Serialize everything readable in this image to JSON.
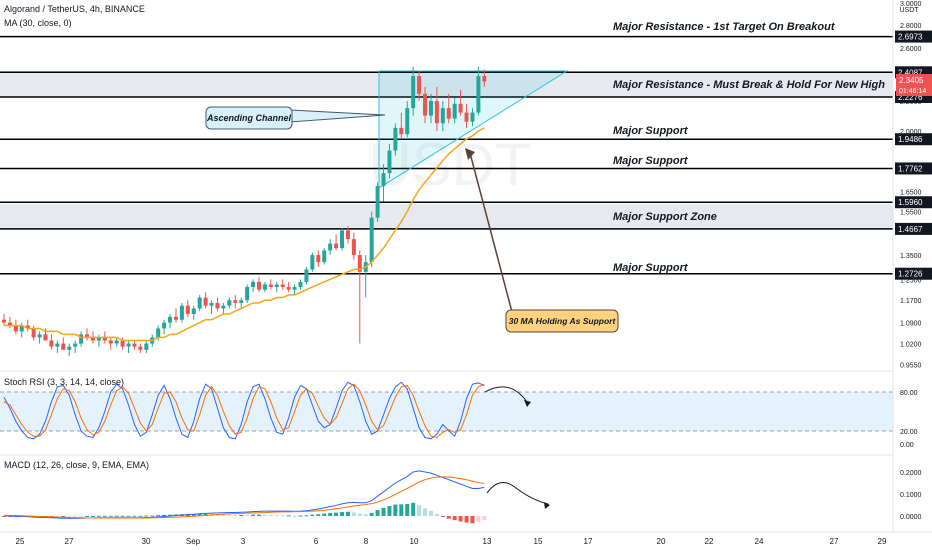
{
  "header": {
    "symbol_line": "Algorand / TetherUS, 4h, BINANCE",
    "ma_line": "MA (30, close, 0)",
    "stoch_line": "Stoch RSI (3, 3, 14, 14, close)",
    "macd_line": "MACD (12, 26, close, 9, EMA, EMA)"
  },
  "chart_data": [
    {
      "type": "candlestick",
      "title": "Algorand / TetherUS, 4h, BINANCE",
      "currency": "USDT",
      "yscale": "log",
      "ylim": [
        0.95,
        3.0
      ],
      "price_ticks": [
        "3.0000",
        "2.8000",
        "2.6000",
        "2.4000",
        "2.2000",
        "2.0000",
        "1.8000",
        "1.6500",
        "1.5500",
        "1.3500",
        "1.2500",
        "1.1700",
        "1.0900",
        "1.0200",
        "0.9550"
      ],
      "x_ticks": [
        "25",
        "27",
        "30",
        "Sep",
        "3",
        "6",
        "8",
        "10",
        "13",
        "15",
        "17",
        "20",
        "22",
        "24",
        "27",
        "29"
      ],
      "level_labels": [
        "2.6973",
        "2.4087",
        "2.2276",
        "1.9486",
        "1.7762",
        "1.5960",
        "1.4667",
        "1.2726"
      ],
      "last_price": "2.3405",
      "countdown": "01:46:14",
      "annotations": [
        "Major Resistance - 1st Target On Breakout",
        "Major Resistance - Must Break & Hold For New High",
        "Major Support",
        "Major Support",
        "Major Support Zone",
        "Major Support",
        "Ascending Channel",
        "30 MA Holding As Support"
      ],
      "ma_series_name": "MA (30, close, 0)",
      "candles_ohlc": [
        [
          1.1,
          1.12,
          1.08,
          1.09
        ],
        [
          1.09,
          1.11,
          1.07,
          1.08
        ],
        [
          1.08,
          1.1,
          1.05,
          1.06
        ],
        [
          1.06,
          1.09,
          1.04,
          1.08
        ],
        [
          1.08,
          1.1,
          1.06,
          1.07
        ],
        [
          1.07,
          1.08,
          1.03,
          1.04
        ],
        [
          1.04,
          1.06,
          1.02,
          1.05
        ],
        [
          1.05,
          1.07,
          1.03,
          1.03
        ],
        [
          1.03,
          1.05,
          1.0,
          1.01
        ],
        [
          1.01,
          1.03,
          0.99,
          1.02
        ],
        [
          1.02,
          1.04,
          1.0,
          1.0
        ],
        [
          1.0,
          1.02,
          0.98,
          1.01
        ],
        [
          1.01,
          1.03,
          0.99,
          1.02
        ],
        [
          1.02,
          1.06,
          1.01,
          1.05
        ],
        [
          1.05,
          1.07,
          1.03,
          1.04
        ],
        [
          1.04,
          1.06,
          1.02,
          1.03
        ],
        [
          1.03,
          1.05,
          1.01,
          1.04
        ],
        [
          1.04,
          1.06,
          1.02,
          1.03
        ],
        [
          1.03,
          1.04,
          1.0,
          1.02
        ],
        [
          1.02,
          1.04,
          1.01,
          1.03
        ],
        [
          1.03,
          1.04,
          1.0,
          1.01
        ],
        [
          1.01,
          1.03,
          0.99,
          1.02
        ],
        [
          1.02,
          1.03,
          1.0,
          1.01
        ],
        [
          1.01,
          1.02,
          0.99,
          1.0
        ],
        [
          1.0,
          1.03,
          0.99,
          1.02
        ],
        [
          1.02,
          1.05,
          1.01,
          1.04
        ],
        [
          1.04,
          1.08,
          1.03,
          1.07
        ],
        [
          1.07,
          1.1,
          1.05,
          1.09
        ],
        [
          1.09,
          1.12,
          1.07,
          1.11
        ],
        [
          1.11,
          1.14,
          1.09,
          1.1
        ],
        [
          1.1,
          1.16,
          1.09,
          1.15
        ],
        [
          1.15,
          1.17,
          1.11,
          1.12
        ],
        [
          1.12,
          1.15,
          1.1,
          1.14
        ],
        [
          1.14,
          1.19,
          1.13,
          1.18
        ],
        [
          1.18,
          1.2,
          1.14,
          1.15
        ],
        [
          1.15,
          1.17,
          1.12,
          1.16
        ],
        [
          1.16,
          1.18,
          1.13,
          1.14
        ],
        [
          1.14,
          1.16,
          1.12,
          1.15
        ],
        [
          1.15,
          1.18,
          1.14,
          1.17
        ],
        [
          1.17,
          1.19,
          1.14,
          1.16
        ],
        [
          1.16,
          1.18,
          1.14,
          1.17
        ],
        [
          1.17,
          1.23,
          1.16,
          1.22
        ],
        [
          1.22,
          1.25,
          1.2,
          1.24
        ],
        [
          1.24,
          1.26,
          1.2,
          1.21
        ],
        [
          1.21,
          1.24,
          1.2,
          1.23
        ],
        [
          1.23,
          1.25,
          1.21,
          1.22
        ],
        [
          1.22,
          1.24,
          1.2,
          1.23
        ],
        [
          1.23,
          1.25,
          1.21,
          1.22
        ],
        [
          1.22,
          1.24,
          1.2,
          1.21
        ],
        [
          1.21,
          1.23,
          1.19,
          1.22
        ],
        [
          1.22,
          1.25,
          1.21,
          1.24
        ],
        [
          1.24,
          1.3,
          1.23,
          1.29
        ],
        [
          1.29,
          1.36,
          1.28,
          1.35
        ],
        [
          1.35,
          1.37,
          1.3,
          1.32
        ],
        [
          1.32,
          1.38,
          1.31,
          1.37
        ],
        [
          1.37,
          1.42,
          1.35,
          1.4
        ],
        [
          1.4,
          1.44,
          1.37,
          1.38
        ],
        [
          1.38,
          1.47,
          1.37,
          1.46
        ],
        [
          1.46,
          1.48,
          1.4,
          1.42
        ],
        [
          1.42,
          1.45,
          1.33,
          1.35
        ],
        [
          1.35,
          1.37,
          1.02,
          1.28
        ],
        [
          1.28,
          1.35,
          1.18,
          1.32
        ],
        [
          1.32,
          1.55,
          1.3,
          1.52
        ],
        [
          1.52,
          1.7,
          1.5,
          1.68
        ],
        [
          1.68,
          1.8,
          1.6,
          1.75
        ],
        [
          1.75,
          1.92,
          1.72,
          1.88
        ],
        [
          1.88,
          2.05,
          1.85,
          2.02
        ],
        [
          2.02,
          2.12,
          1.95,
          1.98
        ],
        [
          1.98,
          2.2,
          1.96,
          2.15
        ],
        [
          2.15,
          2.45,
          2.1,
          2.38
        ],
        [
          2.38,
          2.42,
          2.2,
          2.25
        ],
        [
          2.25,
          2.3,
          2.05,
          2.1
        ],
        [
          2.1,
          2.25,
          2.05,
          2.2
        ],
        [
          2.2,
          2.3,
          2.0,
          2.05
        ],
        [
          2.05,
          2.2,
          2.0,
          2.15
        ],
        [
          2.15,
          2.25,
          2.05,
          2.08
        ],
        [
          2.08,
          2.22,
          2.05,
          2.18
        ],
        [
          2.18,
          2.28,
          2.1,
          2.12
        ],
        [
          2.12,
          2.18,
          2.02,
          2.06
        ],
        [
          2.06,
          2.15,
          2.03,
          2.12
        ],
        [
          2.12,
          2.45,
          2.1,
          2.38
        ],
        [
          2.38,
          2.43,
          2.3,
          2.34
        ]
      ],
      "ma_values": [
        1.08,
        1.08,
        1.08,
        1.08,
        1.07,
        1.07,
        1.07,
        1.06,
        1.06,
        1.06,
        1.05,
        1.05,
        1.05,
        1.04,
        1.04,
        1.04,
        1.04,
        1.04,
        1.04,
        1.04,
        1.03,
        1.03,
        1.03,
        1.03,
        1.03,
        1.03,
        1.04,
        1.04,
        1.05,
        1.05,
        1.06,
        1.07,
        1.08,
        1.09,
        1.1,
        1.1,
        1.11,
        1.12,
        1.12,
        1.13,
        1.14,
        1.15,
        1.16,
        1.16,
        1.17,
        1.17,
        1.18,
        1.18,
        1.19,
        1.19,
        1.2,
        1.21,
        1.22,
        1.23,
        1.24,
        1.25,
        1.26,
        1.27,
        1.28,
        1.29,
        1.29,
        1.3,
        1.32,
        1.35,
        1.38,
        1.42,
        1.46,
        1.5,
        1.55,
        1.61,
        1.66,
        1.7,
        1.74,
        1.78,
        1.82,
        1.86,
        1.89,
        1.92,
        1.95,
        1.97,
        2.0,
        2.02
      ]
    },
    {
      "type": "line",
      "title": "Stoch RSI (3, 3, 14, 14, close)",
      "y_ticks": [
        "80.00",
        "20.00",
        "0.00"
      ],
      "ylim": [
        0,
        100
      ],
      "k_values": [
        72,
        55,
        35,
        20,
        10,
        8,
        15,
        35,
        65,
        88,
        90,
        75,
        45,
        20,
        12,
        10,
        25,
        50,
        80,
        92,
        85,
        60,
        30,
        12,
        18,
        45,
        75,
        90,
        70,
        40,
        15,
        10,
        35,
        70,
        92,
        85,
        55,
        25,
        10,
        8,
        30,
        65,
        88,
        92,
        70,
        40,
        18,
        15,
        40,
        72,
        90,
        85,
        60,
        35,
        25,
        30,
        55,
        82,
        95,
        90,
        65,
        35,
        15,
        20,
        45,
        70,
        88,
        95,
        85,
        55,
        25,
        10,
        8,
        15,
        30,
        20,
        12,
        35,
        70,
        92,
        94,
        90
      ],
      "d_values": [
        65,
        60,
        45,
        30,
        18,
        12,
        12,
        22,
        45,
        70,
        85,
        82,
        65,
        40,
        22,
        14,
        18,
        35,
        60,
        82,
        88,
        78,
        55,
        32,
        20,
        30,
        55,
        78,
        80,
        65,
        40,
        22,
        20,
        45,
        75,
        88,
        75,
        50,
        28,
        15,
        18,
        40,
        70,
        88,
        85,
        65,
        40,
        22,
        25,
        50,
        75,
        85,
        78,
        58,
        40,
        30,
        40,
        62,
        85,
        92,
        82,
        60,
        35,
        22,
        28,
        50,
        72,
        88,
        90,
        75,
        50,
        28,
        12,
        10,
        18,
        22,
        18,
        22,
        45,
        75,
        88,
        92
      ]
    },
    {
      "type": "bar",
      "title": "MACD (12, 26, close, 9, EMA, EMA)",
      "y_ticks": [
        "0.2000",
        "0.1000",
        "0.0000"
      ],
      "ylim": [
        -0.03,
        0.24
      ],
      "macd_values": [
        0.001,
        0.0,
        -0.001,
        -0.002,
        -0.003,
        -0.005,
        -0.006,
        -0.007,
        -0.008,
        -0.009,
        -0.01,
        -0.011,
        -0.011,
        -0.01,
        -0.009,
        -0.009,
        -0.008,
        -0.008,
        -0.008,
        -0.008,
        -0.008,
        -0.008,
        -0.008,
        -0.008,
        -0.007,
        -0.006,
        -0.004,
        -0.002,
        0.0,
        0.002,
        0.004,
        0.006,
        0.008,
        0.01,
        0.012,
        0.013,
        0.014,
        0.015,
        0.016,
        0.016,
        0.017,
        0.018,
        0.02,
        0.021,
        0.022,
        0.022,
        0.022,
        0.022,
        0.022,
        0.021,
        0.022,
        0.024,
        0.028,
        0.032,
        0.037,
        0.043,
        0.048,
        0.055,
        0.06,
        0.062,
        0.06,
        0.06,
        0.07,
        0.09,
        0.11,
        0.13,
        0.15,
        0.165,
        0.18,
        0.2,
        0.205,
        0.2,
        0.195,
        0.185,
        0.175,
        0.165,
        0.155,
        0.145,
        0.135,
        0.125,
        0.125,
        0.13
      ],
      "signal_values": [
        0.003,
        0.002,
        0.002,
        0.001,
        0.0,
        -0.001,
        -0.002,
        -0.003,
        -0.004,
        -0.005,
        -0.006,
        -0.007,
        -0.008,
        -0.008,
        -0.009,
        -0.009,
        -0.009,
        -0.009,
        -0.009,
        -0.009,
        -0.009,
        -0.009,
        -0.009,
        -0.009,
        -0.009,
        -0.008,
        -0.008,
        -0.007,
        -0.006,
        -0.005,
        -0.004,
        -0.002,
        -0.001,
        0.001,
        0.003,
        0.005,
        0.007,
        0.008,
        0.01,
        0.011,
        0.012,
        0.013,
        0.014,
        0.015,
        0.016,
        0.017,
        0.018,
        0.019,
        0.019,
        0.02,
        0.02,
        0.021,
        0.022,
        0.024,
        0.026,
        0.029,
        0.033,
        0.037,
        0.041,
        0.046,
        0.049,
        0.052,
        0.056,
        0.063,
        0.073,
        0.085,
        0.098,
        0.112,
        0.125,
        0.14,
        0.155,
        0.165,
        0.172,
        0.176,
        0.178,
        0.177,
        0.174,
        0.17,
        0.165,
        0.158,
        0.152,
        0.148
      ]
    }
  ]
}
